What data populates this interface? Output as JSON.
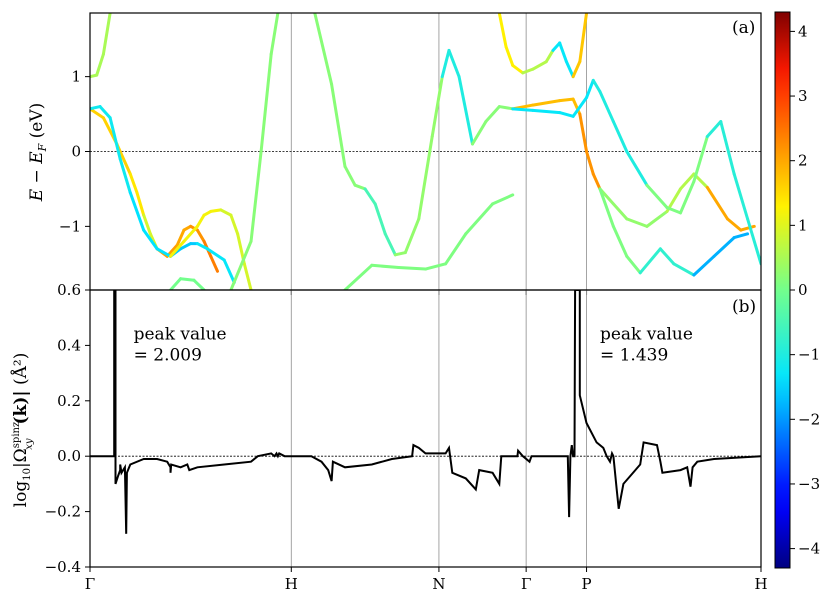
{
  "chart_data": [
    {
      "panel": "a",
      "type": "line",
      "panel_label": "(a)",
      "ylabel": "E − E_F (eV)",
      "ylabel_parts": {
        "main": "E − E",
        "sub": "F",
        "unit": " (eV)"
      },
      "ylim": [
        -1.85,
        1.85
      ],
      "yticks": [
        -1,
        0,
        1
      ],
      "ytick_labels": [
        "−1",
        "0",
        "1"
      ],
      "xlim": [
        0,
        1
      ],
      "xticks": [
        0,
        0.3,
        0.52,
        0.65,
        0.74,
        1.0
      ],
      "xtick_labels": [
        "Γ",
        "H",
        "N",
        "Γ",
        "P",
        "H"
      ],
      "vertical_lines_at": [
        0.3,
        0.52,
        0.65,
        0.74
      ],
      "reference_line_y": 0,
      "colormap": "jet",
      "colorbar": {
        "min": -4.3,
        "max": 4.3,
        "ticks": [
          -4,
          -3,
          -2,
          -1,
          0,
          1,
          2,
          3,
          4
        ],
        "tick_labels": [
          "−4",
          "−3",
          "−2",
          "−1",
          "0",
          "1",
          "2",
          "3",
          "4"
        ]
      },
      "series": [
        {
          "points": [
            [
              0.0,
              1.0
            ],
            [
              0.01,
              1.02
            ],
            [
              0.02,
              1.3
            ],
            [
              0.03,
              1.85
            ]
          ],
          "colors": [
            0.5
          ]
        },
        {
          "points": [
            [
              0.0,
              0.57
            ],
            [
              0.02,
              0.45
            ],
            [
              0.04,
              0.1
            ],
            [
              0.06,
              -0.3
            ],
            [
              0.07,
              -0.55
            ],
            [
              0.08,
              -0.85
            ],
            [
              0.09,
              -1.1
            ],
            [
              0.1,
              -1.3
            ],
            [
              0.115,
              -1.4
            ],
            [
              0.13,
              -1.25
            ],
            [
              0.14,
              -1.05
            ],
            [
              0.15,
              -1.0
            ],
            [
              0.16,
              -1.05
            ],
            [
              0.17,
              -1.2
            ],
            [
              0.18,
              -1.4
            ],
            [
              0.19,
              -1.6
            ]
          ],
          "colors": [
            1.6,
            1.4,
            0.9,
            2.1,
            2.0,
            2.2,
            2.4
          ]
        },
        {
          "points": [
            [
              0.0,
              0.57
            ],
            [
              0.015,
              0.6
            ],
            [
              0.03,
              0.45
            ],
            [
              0.045,
              -0.1
            ],
            [
              0.06,
              -0.55
            ],
            [
              0.08,
              -1.05
            ],
            [
              0.1,
              -1.3
            ],
            [
              0.12,
              -1.4
            ],
            [
              0.135,
              -1.3
            ],
            [
              0.15,
              -1.23
            ],
            [
              0.16,
              -1.23
            ],
            [
              0.175,
              -1.3
            ],
            [
              0.2,
              -1.45
            ],
            [
              0.215,
              -1.75
            ]
          ],
          "colors": [
            -1.2,
            -1.4,
            -1.6,
            -1.3
          ]
        },
        {
          "points": [
            [
              0.12,
              -1.4
            ],
            [
              0.14,
              -1.2
            ],
            [
              0.16,
              -1.0
            ],
            [
              0.17,
              -0.85
            ],
            [
              0.18,
              -0.8
            ],
            [
              0.195,
              -0.78
            ],
            [
              0.21,
              -0.85
            ],
            [
              0.22,
              -1.1
            ],
            [
              0.23,
              -1.5
            ],
            [
              0.24,
              -1.85
            ]
          ],
          "colors": [
            1.2,
            0.9
          ]
        },
        {
          "points": [
            [
              0.12,
              -1.85
            ],
            [
              0.135,
              -1.7
            ],
            [
              0.155,
              -1.72
            ],
            [
              0.17,
              -1.85
            ]
          ],
          "colors": [
            0.0
          ]
        },
        {
          "points": [
            [
              0.21,
              -1.85
            ],
            [
              0.24,
              -1.2
            ],
            [
              0.255,
              0.0
            ],
            [
              0.27,
              1.3
            ],
            [
              0.28,
              1.85
            ]
          ],
          "colors": [
            0.2
          ]
        },
        {
          "points": [
            [
              0.335,
              1.85
            ],
            [
              0.36,
              0.9
            ],
            [
              0.38,
              -0.2
            ],
            [
              0.395,
              -0.45
            ],
            [
              0.41,
              -0.5
            ],
            [
              0.425,
              -0.7
            ],
            [
              0.44,
              -1.1
            ],
            [
              0.455,
              -1.38
            ],
            [
              0.47,
              -1.35
            ],
            [
              0.49,
              -0.9
            ],
            [
              0.51,
              0.2
            ],
            [
              0.525,
              1.0
            ],
            [
              0.535,
              1.35
            ],
            [
              0.55,
              1.0
            ],
            [
              0.57,
              0.1
            ],
            [
              0.59,
              0.4
            ],
            [
              0.61,
              0.6
            ],
            [
              0.63,
              0.57
            ]
          ],
          "colors": [
            0.2,
            -0.5,
            0.3,
            -1.0,
            0.2
          ]
        },
        {
          "points": [
            [
              0.38,
              -1.85
            ],
            [
              0.42,
              -1.52
            ],
            [
              0.46,
              -1.55
            ],
            [
              0.5,
              -1.57
            ],
            [
              0.53,
              -1.5
            ],
            [
              0.56,
              -1.1
            ],
            [
              0.6,
              -0.7
            ],
            [
              0.63,
              -0.58
            ]
          ],
          "colors": [
            0.1
          ]
        },
        {
          "points": [
            [
              0.61,
              1.85
            ],
            [
              0.62,
              1.4
            ],
            [
              0.63,
              1.15
            ],
            [
              0.645,
              1.05
            ],
            [
              0.66,
              1.1
            ],
            [
              0.68,
              1.2
            ],
            [
              0.69,
              1.35
            ],
            [
              0.7,
              1.45
            ],
            [
              0.71,
              1.2
            ],
            [
              0.72,
              1.0
            ],
            [
              0.73,
              1.2
            ],
            [
              0.74,
              1.85
            ]
          ],
          "colors": [
            1.3,
            0.6,
            -1.3,
            1.7
          ]
        },
        {
          "points": [
            [
              0.63,
              0.57
            ],
            [
              0.66,
              0.62
            ],
            [
              0.7,
              0.68
            ],
            [
              0.72,
              0.7
            ],
            [
              0.73,
              0.5
            ],
            [
              0.74,
              0.0
            ],
            [
              0.75,
              -0.3
            ],
            [
              0.76,
              -0.5
            ],
            [
              0.8,
              -0.9
            ],
            [
              0.83,
              -1.0
            ],
            [
              0.86,
              -0.8
            ],
            [
              0.88,
              -0.5
            ],
            [
              0.9,
              -0.3
            ],
            [
              0.92,
              -0.48
            ],
            [
              0.95,
              -0.9
            ],
            [
              0.97,
              -1.05
            ],
            [
              0.99,
              -1.0
            ]
          ],
          "colors": [
            1.8,
            2.2,
            0.3,
            0.6,
            2.0
          ]
        },
        {
          "points": [
            [
              0.63,
              0.57
            ],
            [
              0.66,
              0.55
            ],
            [
              0.7,
              0.52
            ],
            [
              0.72,
              0.47
            ],
            [
              0.74,
              0.72
            ],
            [
              0.75,
              0.95
            ],
            [
              0.76,
              0.8
            ],
            [
              0.78,
              0.4
            ],
            [
              0.8,
              0.0
            ],
            [
              0.83,
              -0.45
            ],
            [
              0.86,
              -0.75
            ],
            [
              0.88,
              -0.82
            ],
            [
              0.9,
              -0.4
            ],
            [
              0.92,
              0.2
            ],
            [
              0.94,
              0.4
            ],
            [
              0.96,
              -0.3
            ],
            [
              0.98,
              -0.9
            ],
            [
              1.0,
              -1.5
            ]
          ],
          "colors": [
            -1.3,
            -1.0,
            0.1,
            -0.9
          ]
        },
        {
          "points": [
            [
              0.76,
              -0.5
            ],
            [
              0.78,
              -1.0
            ],
            [
              0.8,
              -1.4
            ],
            [
              0.82,
              -1.62
            ],
            [
              0.85,
              -1.3
            ],
            [
              0.87,
              -1.5
            ],
            [
              0.9,
              -1.65
            ],
            [
              0.93,
              -1.4
            ],
            [
              0.96,
              -1.15
            ],
            [
              0.98,
              -1.1
            ]
          ],
          "colors": [
            0.1,
            -0.8,
            -1.8
          ]
        }
      ]
    },
    {
      "panel": "b",
      "type": "line",
      "panel_label": "(b)",
      "ylabel": "log10 |Ω^spinz_xy(k)| (Å²)",
      "ylabel_parts": {
        "prefix": "log",
        "sub10": "10",
        "abs_open": "|Ω",
        "sup": "spinz",
        "sub": "xy",
        "arg": "(k)|",
        "unit": " (Å²)"
      },
      "ylim": [
        -0.4,
        0.6
      ],
      "yticks": [
        -0.4,
        -0.2,
        0.0,
        0.2,
        0.4,
        0.6
      ],
      "ytick_labels": [
        "−0.4",
        "−0.2",
        "0.0",
        "0.2",
        "0.4",
        "0.6"
      ],
      "xlim": [
        0,
        1
      ],
      "xticks": [
        0,
        0.3,
        0.52,
        0.65,
        0.74,
        1.0
      ],
      "xtick_labels": [
        "Γ",
        "H",
        "N",
        "Γ",
        "P",
        "H"
      ],
      "reference_line_y": 0,
      "annotations": [
        {
          "line1": "peak value",
          "line2": "= 2.009",
          "x": 0.065,
          "y": 0.45
        },
        {
          "line1": "peak value",
          "line2": "= 1.439",
          "x": 0.76,
          "y": 0.45
        }
      ],
      "series": [
        {
          "name": "",
          "points": [
            [
              0.0,
              0.0
            ],
            [
              0.035,
              0.0
            ],
            [
              0.036,
              0.0
            ],
            [
              0.036,
              0.6
            ],
            [
              0.038,
              0.6
            ],
            [
              0.038,
              -0.1
            ],
            [
              0.042,
              -0.07
            ],
            [
              0.045,
              -0.05
            ],
            [
              0.045,
              -0.03
            ],
            [
              0.047,
              -0.06
            ],
            [
              0.052,
              -0.04
            ],
            [
              0.054,
              -0.28
            ],
            [
              0.055,
              -0.06
            ],
            [
              0.06,
              -0.03
            ],
            [
              0.08,
              -0.01
            ],
            [
              0.1,
              -0.01
            ],
            [
              0.115,
              -0.02
            ],
            [
              0.12,
              -0.04
            ],
            [
              0.12,
              -0.06
            ],
            [
              0.121,
              -0.03
            ],
            [
              0.135,
              -0.04
            ],
            [
              0.145,
              -0.03
            ],
            [
              0.148,
              -0.05
            ],
            [
              0.16,
              -0.04
            ],
            [
              0.2,
              -0.03
            ],
            [
              0.24,
              -0.02
            ],
            [
              0.25,
              0.0
            ],
            [
              0.27,
              0.01
            ],
            [
              0.275,
              0.0
            ],
            [
              0.278,
              0.01
            ],
            [
              0.28,
              0.0
            ],
            [
              0.282,
              0.01
            ],
            [
              0.29,
              0.0
            ],
            [
              0.33,
              0.0
            ],
            [
              0.345,
              -0.02
            ],
            [
              0.355,
              -0.05
            ],
            [
              0.36,
              -0.09
            ],
            [
              0.362,
              -0.02
            ],
            [
              0.38,
              -0.04
            ],
            [
              0.42,
              -0.03
            ],
            [
              0.45,
              -0.01
            ],
            [
              0.48,
              0.0
            ],
            [
              0.482,
              0.04
            ],
            [
              0.49,
              0.03
            ],
            [
              0.5,
              0.01
            ],
            [
              0.52,
              0.01
            ],
            [
              0.53,
              0.01
            ],
            [
              0.535,
              0.03
            ],
            [
              0.54,
              -0.06
            ],
            [
              0.56,
              -0.08
            ],
            [
              0.575,
              -0.12
            ],
            [
              0.58,
              -0.05
            ],
            [
              0.6,
              -0.06
            ],
            [
              0.61,
              -0.1
            ],
            [
              0.613,
              0.0
            ],
            [
              0.63,
              0.0
            ],
            [
              0.637,
              0.0
            ],
            [
              0.638,
              0.02
            ],
            [
              0.645,
              0.0
            ],
            [
              0.655,
              -0.02
            ],
            [
              0.658,
              0.0
            ],
            [
              0.67,
              0.0
            ],
            [
              0.712,
              0.0
            ],
            [
              0.714,
              -0.22
            ],
            [
              0.716,
              0.0
            ],
            [
              0.718,
              0.04
            ],
            [
              0.72,
              0.0
            ],
            [
              0.722,
              0.0
            ],
            [
              0.723,
              0.6
            ],
            [
              0.73,
              0.6
            ],
            [
              0.73,
              0.22
            ],
            [
              0.74,
              0.12
            ],
            [
              0.755,
              0.05
            ],
            [
              0.765,
              0.03
            ],
            [
              0.77,
              0.0
            ],
            [
              0.775,
              -0.02
            ],
            [
              0.778,
              0.01
            ],
            [
              0.78,
              0.0
            ],
            [
              0.785,
              -0.12
            ],
            [
              0.788,
              -0.19
            ],
            [
              0.795,
              -0.1
            ],
            [
              0.82,
              -0.03
            ],
            [
              0.825,
              0.05
            ],
            [
              0.845,
              0.04
            ],
            [
              0.85,
              -0.02
            ],
            [
              0.853,
              -0.06
            ],
            [
              0.88,
              -0.05
            ],
            [
              0.89,
              -0.04
            ],
            [
              0.895,
              -0.11
            ],
            [
              0.898,
              -0.04
            ],
            [
              0.905,
              -0.02
            ],
            [
              0.93,
              -0.01
            ],
            [
              1.0,
              0.0
            ]
          ]
        }
      ]
    }
  ]
}
